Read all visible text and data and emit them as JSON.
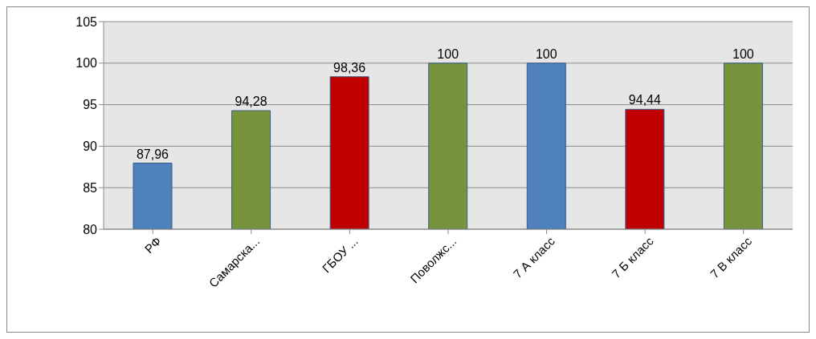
{
  "chart_data": {
    "type": "bar",
    "categories": [
      "РФ",
      "Самарска...",
      "ГБОУ ...",
      "Поволжс...",
      "7 А класс",
      "7 Б класс",
      "7 В класс"
    ],
    "values": [
      87.96,
      94.28,
      98.36,
      100,
      100,
      94.44,
      100
    ],
    "colors": [
      "#4f81bd",
      "#77933c",
      "#c00000",
      "#77933c",
      "#4f81bd",
      "#c00000",
      "#77933c"
    ],
    "value_labels": [
      "87,96",
      "94,28",
      "98,36",
      "100",
      "100",
      "94,44",
      "100"
    ],
    "ylim": [
      80,
      105
    ],
    "yticks": [
      80,
      85,
      90,
      95,
      100,
      105
    ],
    "grid": "y",
    "legend": false
  }
}
